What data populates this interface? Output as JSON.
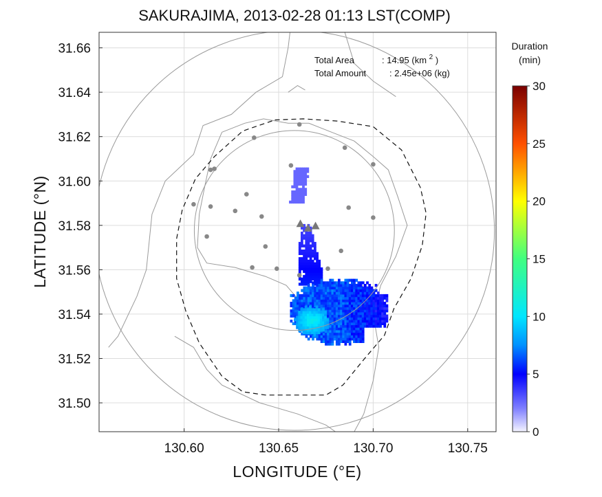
{
  "title": "SAKURAJIMA, 2013-02-28 01:13 LST(COMP)",
  "chart_data": {
    "type": "heatmap",
    "xlabel": "LONGITUDE (°E)",
    "ylabel": "LATITUDE (°N)",
    "xlim": [
      130.555,
      130.765
    ],
    "ylim": [
      31.487,
      31.667
    ],
    "x_ticks": [
      {
        "value": 130.6,
        "label": "130.60"
      },
      {
        "value": 130.65,
        "label": "130.65"
      },
      {
        "value": 130.7,
        "label": "130.70"
      },
      {
        "value": 130.75,
        "label": "130.75"
      }
    ],
    "y_ticks": [
      {
        "value": 31.5,
        "label": "31.50"
      },
      {
        "value": 31.52,
        "label": "31.52"
      },
      {
        "value": 31.54,
        "label": "31.54"
      },
      {
        "value": 31.56,
        "label": "31.56"
      },
      {
        "value": 31.58,
        "label": "31.58"
      },
      {
        "value": 31.6,
        "label": "31.60"
      },
      {
        "value": 31.62,
        "label": "31.62"
      },
      {
        "value": 31.64,
        "label": "31.64"
      },
      {
        "value": 31.66,
        "label": "31.66"
      }
    ],
    "grid": true,
    "annotations": {
      "total_area_label": "Total Area",
      "total_area_value": ": 14.95 (km",
      "total_area_sup": "2",
      "total_area_close": ")",
      "total_amount_label": "Total Amount",
      "total_amount_value": ": 2.45e+06 (kg)"
    },
    "colorbar": {
      "title_line1": "Duration",
      "title_line2": "(min)",
      "min": 0,
      "max": 30,
      "ticks": [
        {
          "value": 0,
          "label": "0"
        },
        {
          "value": 5,
          "label": "5"
        },
        {
          "value": 10,
          "label": "10"
        },
        {
          "value": 15,
          "label": "15"
        },
        {
          "value": 20,
          "label": "20"
        },
        {
          "value": 25,
          "label": "25"
        },
        {
          "value": 30,
          "label": "30"
        }
      ],
      "stops": [
        {
          "v": 0,
          "c": "#f4f4ff"
        },
        {
          "v": 2,
          "c": "#8080ff"
        },
        {
          "v": 5,
          "c": "#0000ff"
        },
        {
          "v": 7.5,
          "c": "#0090ff"
        },
        {
          "v": 10,
          "c": "#00e6ff"
        },
        {
          "v": 15,
          "c": "#40ff80"
        },
        {
          "v": 20,
          "c": "#ffff00"
        },
        {
          "v": 25,
          "c": "#ff5000"
        },
        {
          "v": 30,
          "c": "#7a0000"
        }
      ]
    },
    "rings_km": [
      5,
      10
    ],
    "center": {
      "lon": 130.6583,
      "lat": 31.5777
    },
    "dashed_boundary": [
      [
        130.648,
        31.6275
      ],
      [
        130.663,
        31.628
      ],
      [
        130.681,
        31.627
      ],
      [
        130.7,
        31.6245
      ],
      [
        130.715,
        31.614
      ],
      [
        130.725,
        31.597
      ],
      [
        130.728,
        31.5855
      ],
      [
        130.726,
        31.571
      ],
      [
        130.72,
        31.556
      ],
      [
        130.711,
        31.5425
      ],
      [
        130.706,
        31.5305
      ],
      [
        130.695,
        31.5195
      ],
      [
        130.684,
        31.508
      ],
      [
        130.675,
        31.5035
      ],
      [
        130.66,
        31.5035
      ],
      [
        130.643,
        31.5035
      ],
      [
        130.631,
        31.505
      ],
      [
        130.62,
        31.512
      ],
      [
        130.608,
        31.527
      ],
      [
        130.601,
        31.541
      ],
      [
        130.596,
        31.556
      ],
      [
        130.596,
        31.574
      ],
      [
        130.599,
        31.587
      ],
      [
        130.606,
        31.601
      ],
      [
        130.616,
        31.611
      ],
      [
        130.631,
        31.6225
      ],
      [
        130.648,
        31.6275
      ]
    ],
    "stations": [
      [
        130.661,
        31.6255
      ],
      [
        130.637,
        31.6195
      ],
      [
        130.685,
        31.615
      ],
      [
        130.6565,
        31.607
      ],
      [
        130.7,
        31.6075
      ],
      [
        130.616,
        31.6055
      ],
      [
        130.614,
        31.605
      ],
      [
        130.605,
        31.5895
      ],
      [
        130.614,
        31.5885
      ],
      [
        130.633,
        31.594
      ],
      [
        130.627,
        31.5865
      ],
      [
        130.641,
        31.584
      ],
      [
        130.687,
        31.588
      ],
      [
        130.7,
        31.5835
      ],
      [
        130.612,
        31.575
      ],
      [
        130.643,
        31.5705
      ],
      [
        130.683,
        31.5685
      ],
      [
        130.636,
        31.561
      ],
      [
        130.649,
        31.5605
      ],
      [
        130.661,
        31.5575
      ],
      [
        130.676,
        31.5605
      ]
    ],
    "vents": [
      [
        130.6615,
        31.5808
      ],
      [
        130.6655,
        31.5788
      ],
      [
        130.6695,
        31.5798
      ]
    ],
    "coast": [
      [
        [
          130.56,
          31.525
        ],
        [
          130.565,
          31.53
        ],
        [
          130.575,
          31.548
        ],
        [
          130.58,
          31.56
        ],
        [
          130.583,
          31.585
        ],
        [
          130.59,
          31.6
        ],
        [
          130.605,
          31.612
        ],
        [
          130.61,
          31.625
        ],
        [
          130.625,
          31.63
        ],
        [
          130.638,
          31.64
        ],
        [
          130.652,
          31.647
        ],
        [
          130.655,
          31.66
        ],
        [
          130.656,
          31.667
        ]
      ],
      [
        [
          130.685,
          31.667
        ],
        [
          130.69,
          31.653
        ],
        [
          130.7,
          31.645
        ],
        [
          130.712,
          31.638
        ]
      ],
      [
        [
          130.62,
          31.622
        ],
        [
          130.632,
          31.626
        ],
        [
          130.642,
          31.628
        ],
        [
          130.655,
          31.626
        ],
        [
          130.666,
          31.626
        ],
        [
          130.678,
          31.622
        ],
        [
          130.69,
          31.618
        ],
        [
          130.7,
          31.611
        ],
        [
          130.708,
          31.605
        ],
        [
          130.713,
          31.593
        ],
        [
          130.718,
          31.58
        ],
        [
          130.712,
          31.566
        ],
        [
          130.704,
          31.553
        ],
        [
          130.7,
          31.54
        ],
        [
          130.703,
          31.525
        ],
        [
          130.7,
          31.51
        ],
        [
          130.695,
          31.495
        ],
        [
          130.69,
          31.487
        ]
      ],
      [
        [
          130.62,
          31.622
        ],
        [
          130.614,
          31.61
        ],
        [
          130.611,
          31.598
        ],
        [
          130.608,
          31.585
        ],
        [
          130.607,
          31.57
        ],
        [
          130.612,
          31.563
        ],
        [
          130.627,
          31.561
        ],
        [
          130.643,
          31.557
        ],
        [
          130.654,
          31.553
        ],
        [
          130.662,
          31.545
        ],
        [
          130.672,
          31.543
        ],
        [
          130.684,
          31.547
        ],
        [
          130.695,
          31.553
        ]
      ],
      [
        [
          130.595,
          31.53
        ],
        [
          130.605,
          31.525
        ],
        [
          130.612,
          31.515
        ],
        [
          130.62,
          31.508
        ],
        [
          130.64,
          31.5
        ],
        [
          130.66,
          31.495
        ],
        [
          130.675,
          31.49
        ],
        [
          130.68,
          31.487
        ]
      ],
      [
        [
          130.655,
          31.64
        ],
        [
          130.66,
          31.643
        ],
        [
          130.664,
          31.641
        ]
      ]
    ],
    "plume": [
      {
        "lon": [
          130.6555,
          130.6655
        ],
        "lat": [
          31.59,
          31.606
        ],
        "value": 2.6,
        "shape": "bar"
      },
      {
        "lon": [
          130.6605,
          130.6725
        ],
        "lat": [
          31.553,
          31.58
        ],
        "value": 5.5,
        "shape": "stem"
      },
      {
        "lon": [
          130.656,
          130.7075
        ],
        "lat": [
          31.526,
          31.555
        ],
        "value": 6.5,
        "shape": "blob"
      },
      {
        "lon": [
          130.658,
          130.676
        ],
        "lat": [
          31.53,
          31.543
        ],
        "value": 11,
        "shape": "core"
      }
    ]
  }
}
